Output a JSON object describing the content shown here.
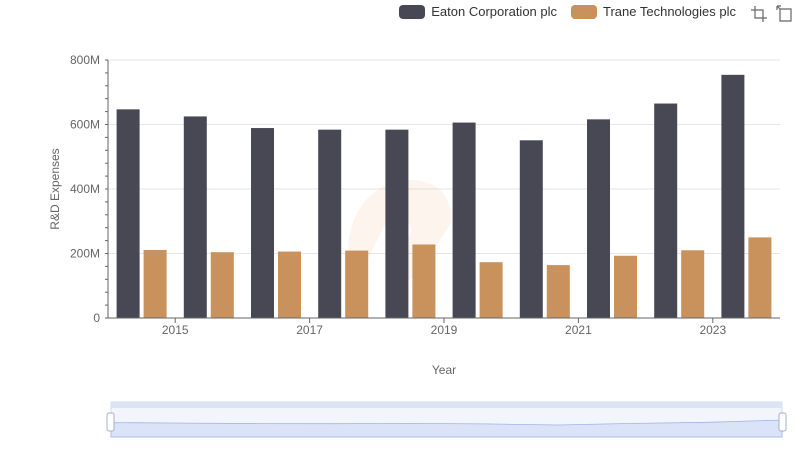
{
  "chart_data": {
    "type": "bar",
    "title": "",
    "xlabel": "Year",
    "ylabel": "R&D Expenses",
    "categories": [
      "2014",
      "2015",
      "2016",
      "2017",
      "2018",
      "2019",
      "2020",
      "2021",
      "2022",
      "2023"
    ],
    "x_tick_labels": [
      "2015",
      "2017",
      "2019",
      "2021",
      "2023"
    ],
    "y_tick_labels": [
      "0",
      "200M",
      "400M",
      "600M",
      "800M"
    ],
    "ylim": [
      0,
      800000000
    ],
    "grid": true,
    "legend_position": "top-right",
    "series": [
      {
        "name": "Eaton Corporation plc",
        "color": "#474854",
        "values": [
          647000000,
          625000000,
          589000000,
          584000000,
          584000000,
          606000000,
          551000000,
          616000000,
          665000000,
          754000000
        ]
      },
      {
        "name": "Trane Technologies plc",
        "color": "#c9915c",
        "values": [
          211000000,
          204000000,
          206000000,
          209000000,
          228000000,
          173000000,
          164000000,
          193000000,
          210000000,
          250000000
        ]
      }
    ]
  },
  "toolbar": {
    "zoom_icon": "zoom-select-icon",
    "restore_icon": "restore-icon"
  }
}
